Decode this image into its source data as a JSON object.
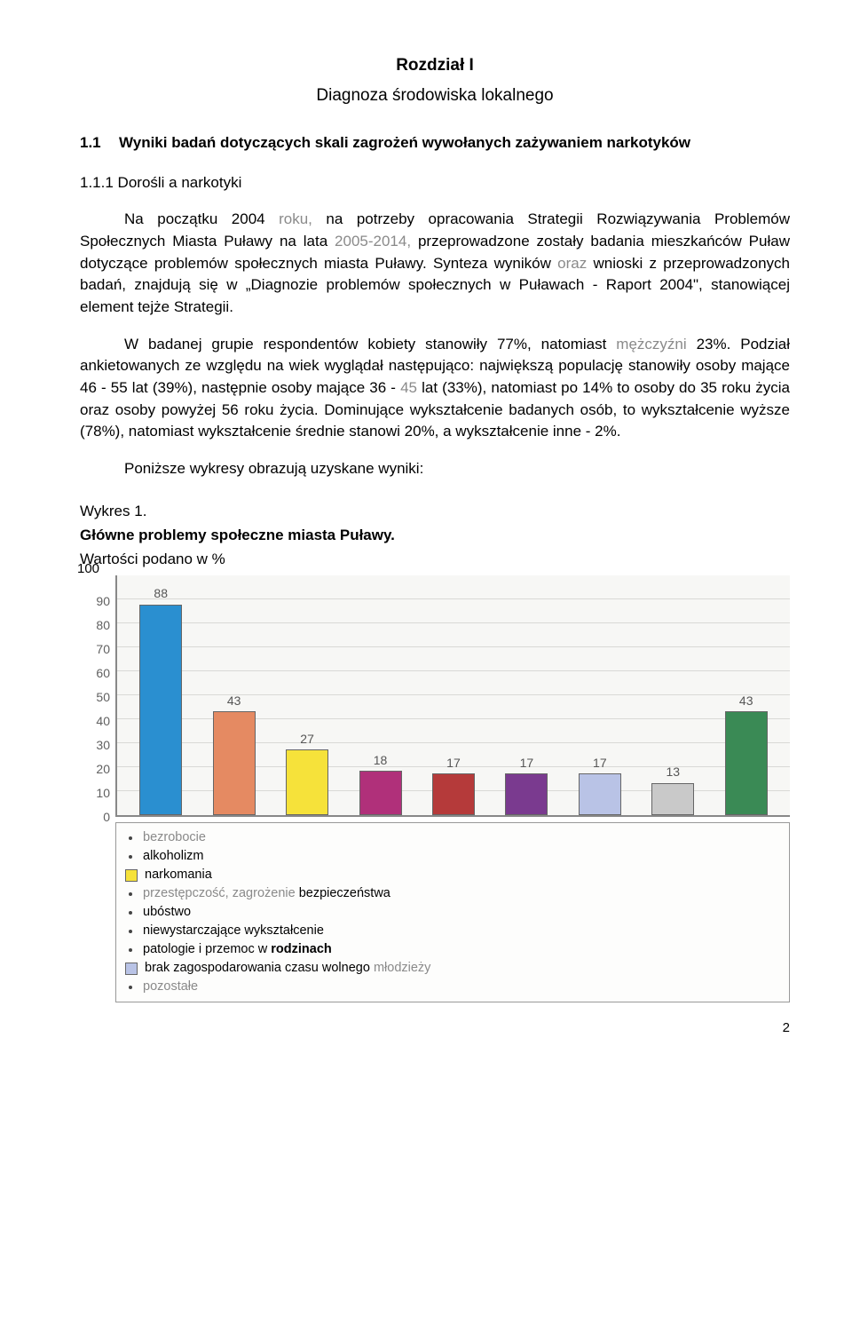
{
  "chapter": {
    "title": "Rozdział I",
    "subtitle": "Diagnoza środowiska lokalnego"
  },
  "section": {
    "num": "1.1",
    "title": "Wyniki badań dotyczących skali zagrożeń wywołanych zażywaniem narkotyków"
  },
  "subsection": {
    "num": "1.1.1",
    "title": "Dorośli a narkotyki"
  },
  "paragraphs": {
    "p1a": "Na początku 2004 ",
    "p1_gray1": "roku,",
    "p1b": " na potrzeby opracowania Strategii Rozwiązywania Problemów Społecznych Miasta Puławy na lata ",
    "p1_gray2": "2005-2014,",
    "p1c": " przeprowadzone zostały badania mieszkańców Puław dotyczące problemów społecznych miasta Puławy. Synteza wyników ",
    "p1_gray3": "oraz",
    "p1d": " wnioski z przeprowadzonych badań, znajdują się w „Diagnozie problemów społecznych w Puławach - Raport 2004\", stanowiącej element tejże Strategii.",
    "p2a": "W badanej grupie respondentów kobiety stanowiły 77%, natomiast ",
    "p2_gray1": "mężczyźni",
    "p2b": " 23%. Podział ankietowanych ze względu na wiek wyglądał następująco: największą populację stanowiły osoby mające 46 - 55 lat (39%), następnie osoby mające 36 - ",
    "p2_gray2": "45",
    "p2c": " lat (33%), natomiast po 14% to osoby do 35 roku życia oraz osoby powyżej 56 roku życia. Dominujące wykształcenie badanych osób, to wykształcenie wyższe (78%), natomiast wykształcenie średnie stanowi 20%, a wykształcenie inne - 2%.",
    "p3": "Poniższe wykresy obrazują uzyskane wyniki:"
  },
  "figure": {
    "label": "Wykres 1.",
    "title": "Główne problemy społeczne miasta Puławy.",
    "caption": "Wartości podano w %"
  },
  "chart": {
    "type": "bar",
    "ylim": [
      0,
      100
    ],
    "yticks": [
      0,
      10,
      20,
      30,
      40,
      50,
      60,
      70,
      80,
      90
    ],
    "y_extra_label": "100",
    "background_color": "#f7f7f5",
    "grid_color": "#d9d9d6",
    "axis_color": "#888888",
    "bar_border": "#666666",
    "bars": [
      {
        "value": 88,
        "color": "#2a8fd0"
      },
      {
        "value": 43,
        "color": "#e58a62"
      },
      {
        "value": 27,
        "color": "#f6e23a"
      },
      {
        "value": 18,
        "color": "#b0307a"
      },
      {
        "value": 17,
        "color": "#b53a3a"
      },
      {
        "value": 17,
        "color": "#7a3a8f"
      },
      {
        "value": 17,
        "color": "#b9c3e6"
      },
      {
        "value": 13,
        "color": "#c9c9c9"
      },
      {
        "value": 43,
        "color": "#3a8a55"
      }
    ]
  },
  "legend": {
    "items": [
      {
        "label": "bezrobocie",
        "swatch": null,
        "gray": true
      },
      {
        "label": "alkoholizm",
        "swatch": null
      },
      {
        "label": "narkomania",
        "swatch": "#f6e23a"
      },
      {
        "label_pre": "przestępczość, zagrożenie ",
        "label": "bezpieczeństwa",
        "swatch": null,
        "gray_pre": true
      },
      {
        "label": "ubóstwo",
        "swatch": null
      },
      {
        "label": "niewystarczające wykształcenie",
        "swatch": null
      },
      {
        "label": "patologie i przemoc w ",
        "label_bold": "rodzinach",
        "swatch": null
      },
      {
        "label": "brak zagospodarowania czasu wolnego ",
        "label_gray_end": "młodzieży",
        "swatch": "#b9c3e6"
      },
      {
        "label": "pozostałe",
        "swatch": null,
        "gray": true
      }
    ]
  },
  "page_number": "2"
}
